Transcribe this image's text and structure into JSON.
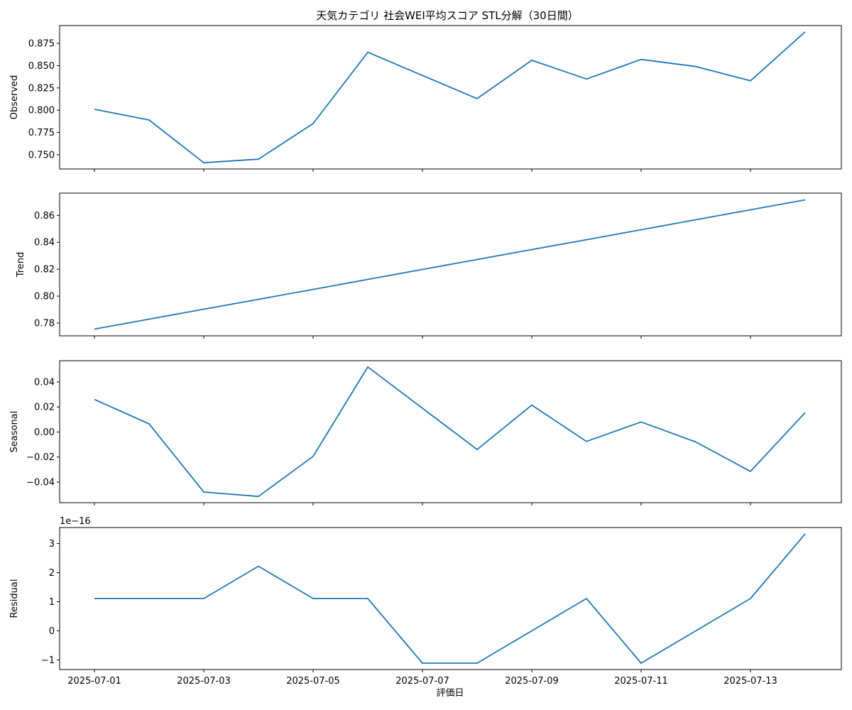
{
  "chart_data": {
    "type": "line",
    "title": "天気カテゴリ 社会WEI平均スコア STL分解（30日間）",
    "xlabel": "評価日",
    "x": [
      "2025-07-01",
      "2025-07-02",
      "2025-07-03",
      "2025-07-04",
      "2025-07-05",
      "2025-07-06",
      "2025-07-07",
      "2025-07-08",
      "2025-07-09",
      "2025-07-10",
      "2025-07-11",
      "2025-07-12",
      "2025-07-13",
      "2025-07-14"
    ],
    "x_tick_labels": [
      "2025-07-01",
      "2025-07-03",
      "2025-07-05",
      "2025-07-07",
      "2025-07-09",
      "2025-07-11",
      "2025-07-13"
    ],
    "line_color": "#1f77b4",
    "panels": [
      {
        "ylabel": "Observed",
        "offset_text": "",
        "ylim": [
          0.734,
          0.895
        ],
        "yticks": [
          0.75,
          0.775,
          0.8,
          0.825,
          0.85,
          0.875
        ],
        "ytick_labels": [
          "0.750",
          "0.775",
          "0.800",
          "0.825",
          "0.850",
          "0.875"
        ],
        "values": [
          0.801,
          0.789,
          0.741,
          0.745,
          0.785,
          0.865,
          0.839,
          0.813,
          0.856,
          0.835,
          0.857,
          0.849,
          0.833,
          0.888
        ]
      },
      {
        "ylabel": "Trend",
        "offset_text": "",
        "ylim": [
          0.7705,
          0.8765
        ],
        "yticks": [
          0.78,
          0.8,
          0.82,
          0.84,
          0.86
        ],
        "ytick_labels": [
          "0.78",
          "0.80",
          "0.82",
          "0.84",
          "0.86"
        ],
        "values": [
          0.7755,
          0.7829,
          0.7903,
          0.7976,
          0.805,
          0.8124,
          0.8198,
          0.8272,
          0.8346,
          0.8419,
          0.8493,
          0.8567,
          0.8641,
          0.8715
        ]
      },
      {
        "ylabel": "Seasonal",
        "offset_text": "",
        "ylim": [
          -0.0565,
          0.057
        ],
        "yticks": [
          -0.04,
          -0.02,
          0.0,
          0.02,
          0.04
        ],
        "ytick_labels": [
          "−0.04",
          "−0.02",
          "0.00",
          "0.02",
          "0.04"
        ],
        "values": [
          0.026,
          0.0065,
          -0.048,
          -0.0515,
          -0.0195,
          0.052,
          0.019,
          -0.014,
          0.0215,
          -0.0075,
          0.008,
          -0.008,
          -0.0315,
          0.0155
        ]
      },
      {
        "ylabel": "Residual",
        "offset_text": "1e−16",
        "ylim": [
          -1.33,
          3.55
        ],
        "yticks": [
          -1,
          0,
          1,
          2,
          3
        ],
        "ytick_labels": [
          "−1",
          "0",
          "1",
          "2",
          "3"
        ],
        "values": [
          1.11,
          1.11,
          1.11,
          2.22,
          1.11,
          1.11,
          -1.11,
          -1.11,
          0.0,
          1.11,
          -1.11,
          0.0,
          1.11,
          3.33
        ]
      }
    ]
  }
}
